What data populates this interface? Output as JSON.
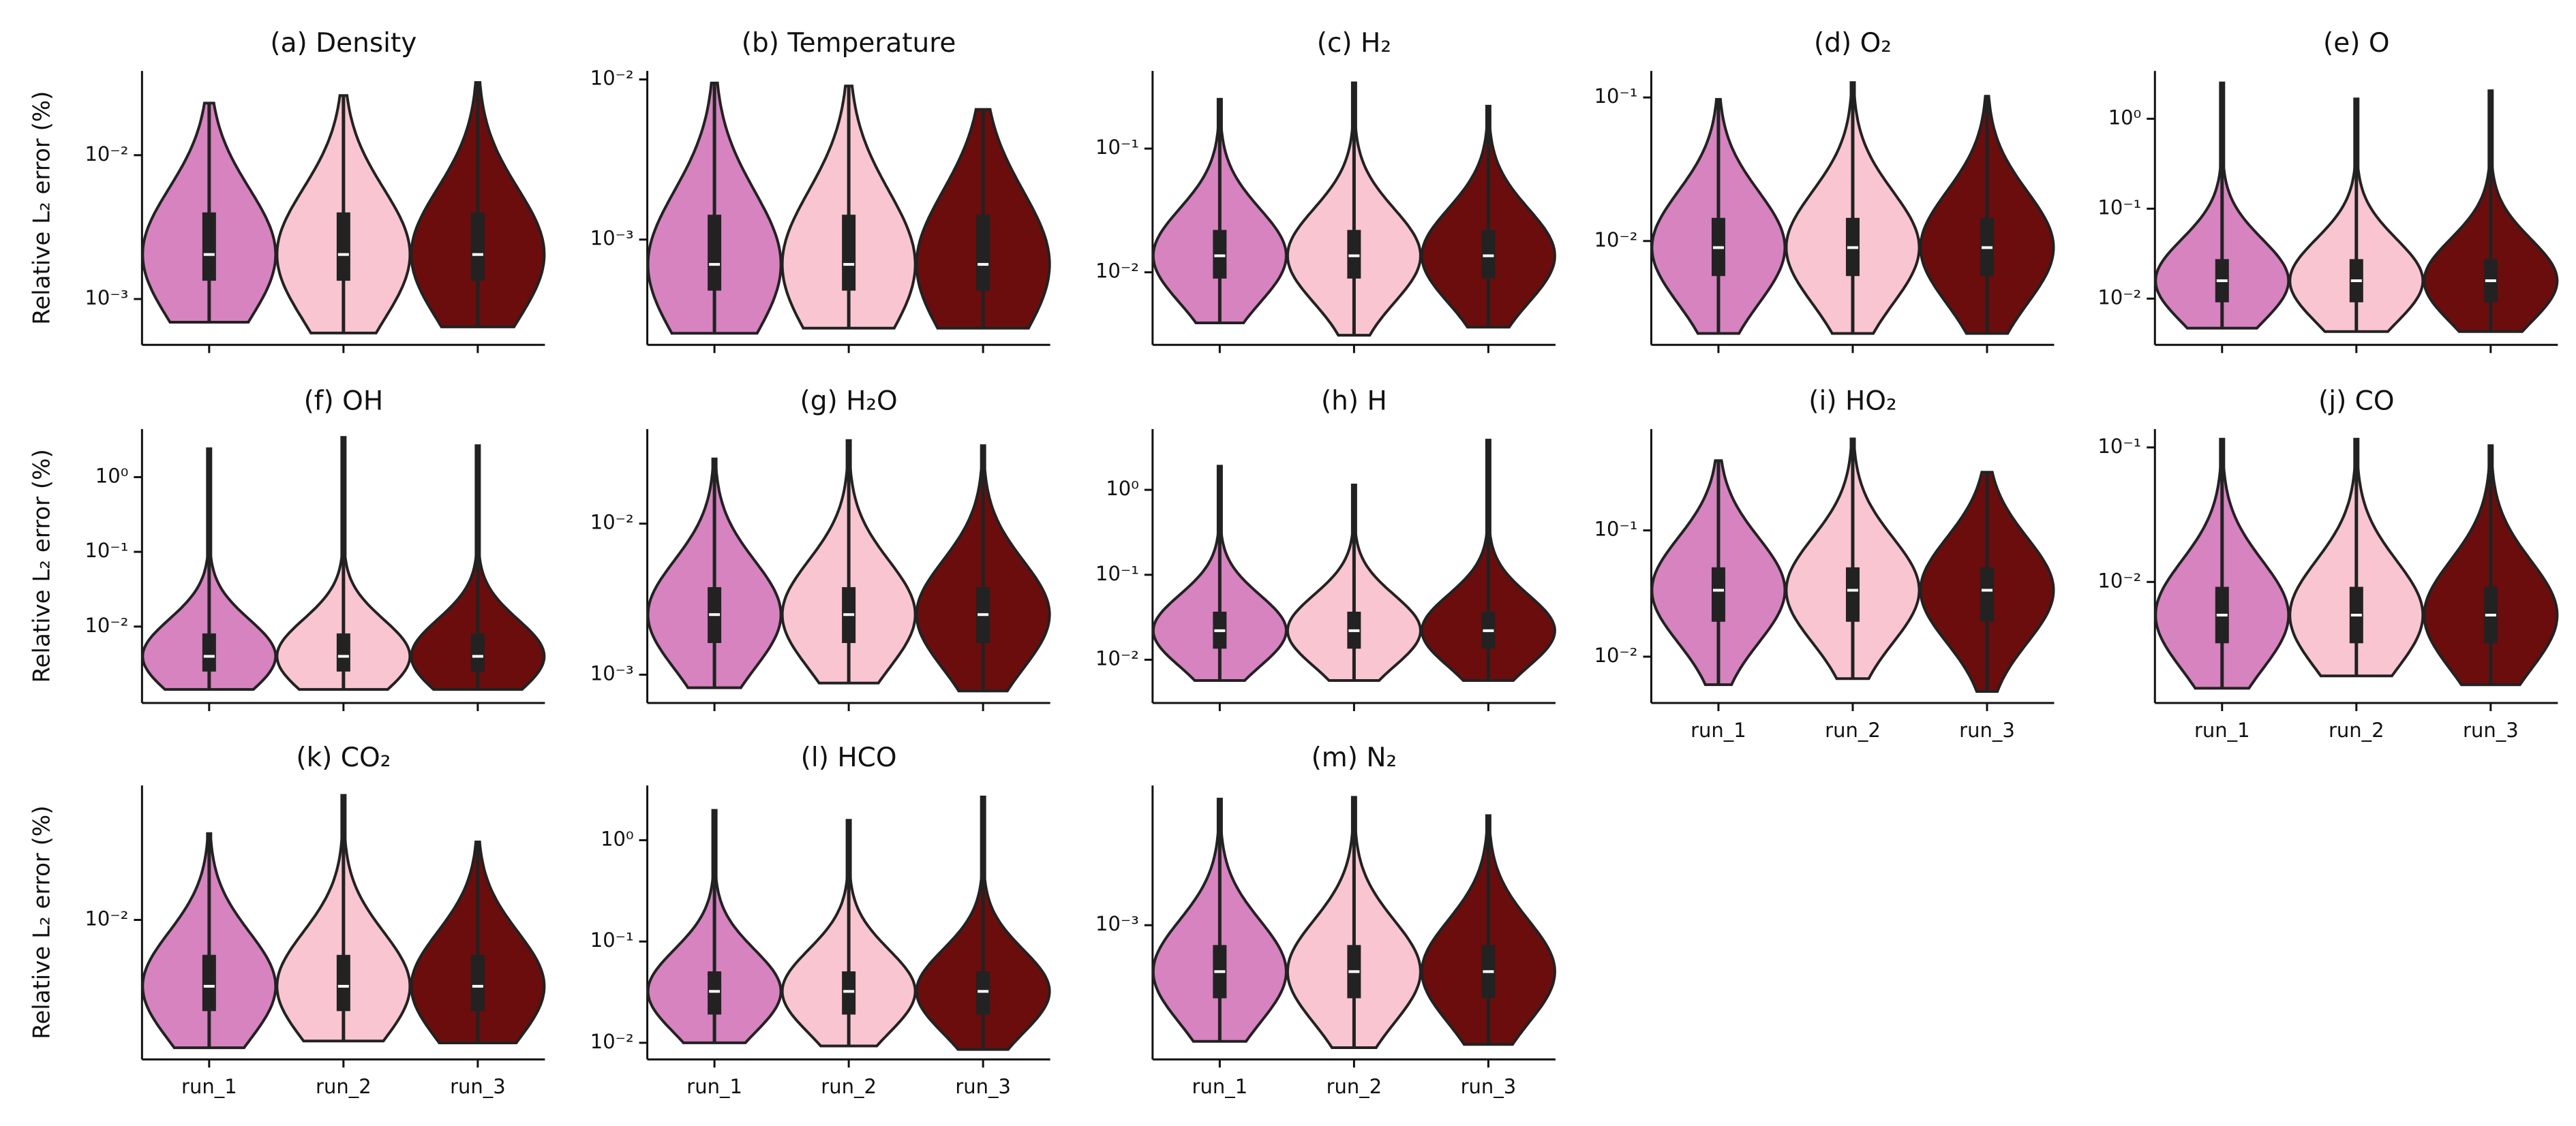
{
  "chart_data": [
    {
      "type": "violin",
      "title": "(a) Density",
      "ylabel": "Relative L₂ error (%)",
      "log": true,
      "ylim": [
        0.00048,
        0.0385
      ],
      "yticks": [
        {
          "value": 0.01,
          "label": "10⁻²"
        },
        {
          "value": 0.001,
          "label": "10⁻³"
        }
      ],
      "colors": [
        "#d683c0",
        "#f9c5d0",
        "#6b0d0d"
      ],
      "violins": [
        {
          "min": 0.00069,
          "q1": 0.00134,
          "median": 0.00204,
          "q3": 0.004,
          "max": 0.023
        },
        {
          "min": 0.00058,
          "q1": 0.00134,
          "median": 0.00204,
          "q3": 0.004,
          "max": 0.026
        },
        {
          "min": 0.00064,
          "q1": 0.00134,
          "median": 0.00204,
          "q3": 0.004,
          "max": 0.032
        }
      ]
    },
    {
      "type": "violin",
      "title": "(b) Temperature",
      "log": true,
      "ylim": [
        0.00022,
        0.0113
      ],
      "yticks": [
        {
          "value": 0.01,
          "label": "10⁻²"
        },
        {
          "value": 0.001,
          "label": "10⁻³"
        }
      ],
      "colors": [
        "#d683c0",
        "#f9c5d0",
        "#6b0d0d"
      ],
      "violins": [
        {
          "min": 0.00026,
          "q1": 0.00048,
          "median": 0.0007,
          "q3": 0.00143,
          "max": 0.0095
        },
        {
          "min": 0.00028,
          "q1": 0.00048,
          "median": 0.0007,
          "q3": 0.00143,
          "max": 0.0091
        },
        {
          "min": 0.00028,
          "q1": 0.00048,
          "median": 0.0007,
          "q3": 0.00143,
          "max": 0.0065
        }
      ]
    },
    {
      "type": "violin",
      "title": "(c) H₂",
      "log": true,
      "ylim": [
        0.00259,
        0.424
      ],
      "yticks": [
        {
          "value": 0.1,
          "label": "10⁻¹"
        },
        {
          "value": 0.01,
          "label": "10⁻²"
        }
      ],
      "colors": [
        "#d683c0",
        "#f9c5d0",
        "#6b0d0d"
      ],
      "violins": [
        {
          "min": 0.0039,
          "q1": 0.0089,
          "median": 0.0136,
          "q3": 0.022,
          "max": 0.25
        },
        {
          "min": 0.0031,
          "q1": 0.0089,
          "median": 0.0136,
          "q3": 0.022,
          "max": 0.34
        },
        {
          "min": 0.0036,
          "q1": 0.0089,
          "median": 0.0136,
          "q3": 0.022,
          "max": 0.22
        }
      ]
    },
    {
      "type": "violin",
      "title": "(d) O₂",
      "log": true,
      "ylim": [
        0.00189,
        0.153
      ],
      "yticks": [
        {
          "value": 0.1,
          "label": "10⁻¹"
        },
        {
          "value": 0.01,
          "label": "10⁻²"
        }
      ],
      "colors": [
        "#d683c0",
        "#f9c5d0",
        "#6b0d0d"
      ],
      "violins": [
        {
          "min": 0.00227,
          "q1": 0.0057,
          "median": 0.009,
          "q3": 0.0145,
          "max": 0.097
        },
        {
          "min": 0.00227,
          "q1": 0.0057,
          "median": 0.009,
          "q3": 0.0145,
          "max": 0.127
        },
        {
          "min": 0.00227,
          "q1": 0.0057,
          "median": 0.009,
          "q3": 0.0145,
          "max": 0.102
        }
      ]
    },
    {
      "type": "violin",
      "title": "(e) O",
      "log": true,
      "ylim": [
        0.00306,
        3.4
      ],
      "yticks": [
        {
          "value": 1,
          "label": "10⁰"
        },
        {
          "value": 0.1,
          "label": "10⁻¹"
        },
        {
          "value": 0.01,
          "label": "10⁻²"
        }
      ],
      "colors": [
        "#d683c0",
        "#f9c5d0",
        "#6b0d0d"
      ],
      "violins": [
        {
          "min": 0.0047,
          "q1": 0.0091,
          "median": 0.0158,
          "q3": 0.0275,
          "max": 2.5
        },
        {
          "min": 0.0043,
          "q1": 0.0091,
          "median": 0.0158,
          "q3": 0.0275,
          "max": 1.66
        },
        {
          "min": 0.0043,
          "q1": 0.0091,
          "median": 0.0158,
          "q3": 0.0275,
          "max": 2.05
        }
      ]
    },
    {
      "type": "violin",
      "title": "(f) OH",
      "ylabel": "Relative L₂ error (%)",
      "log": true,
      "ylim": [
        0.00095,
        4.4
      ],
      "yticks": [
        {
          "value": 1,
          "label": "10⁰"
        },
        {
          "value": 0.1,
          "label": "10⁻¹"
        },
        {
          "value": 0.01,
          "label": "10⁻²"
        }
      ],
      "colors": [
        "#d683c0",
        "#f9c5d0",
        "#6b0d0d"
      ],
      "violins": [
        {
          "min": 0.00144,
          "q1": 0.0025,
          "median": 0.004,
          "q3": 0.0081,
          "max": 2.4
        },
        {
          "min": 0.00144,
          "q1": 0.0025,
          "median": 0.004,
          "q3": 0.0081,
          "max": 3.4
        },
        {
          "min": 0.00144,
          "q1": 0.0025,
          "median": 0.004,
          "q3": 0.0081,
          "max": 2.64
        }
      ]
    },
    {
      "type": "violin",
      "title": "(g) H₂O",
      "log": true,
      "ylim": [
        0.00065,
        0.0423
      ],
      "yticks": [
        {
          "value": 0.01,
          "label": "10⁻²"
        },
        {
          "value": 0.001,
          "label": "10⁻³"
        }
      ],
      "colors": [
        "#d683c0",
        "#f9c5d0",
        "#6b0d0d"
      ],
      "violins": [
        {
          "min": 0.00082,
          "q1": 0.00162,
          "median": 0.0025,
          "q3": 0.0038,
          "max": 0.0268
        },
        {
          "min": 0.00088,
          "q1": 0.00162,
          "median": 0.0025,
          "q3": 0.0038,
          "max": 0.0355
        },
        {
          "min": 0.00078,
          "q1": 0.00162,
          "median": 0.0025,
          "q3": 0.0038,
          "max": 0.0328
        }
      ]
    },
    {
      "type": "violin",
      "title": "(h) H",
      "log": true,
      "ylim": [
        0.0031,
        5.2
      ],
      "yticks": [
        {
          "value": 1,
          "label": "10⁰"
        },
        {
          "value": 0.1,
          "label": "10⁻¹"
        },
        {
          "value": 0.01,
          "label": "10⁻²"
        }
      ],
      "colors": [
        "#d683c0",
        "#f9c5d0",
        "#6b0d0d"
      ],
      "violins": [
        {
          "min": 0.0057,
          "q1": 0.0135,
          "median": 0.022,
          "q3": 0.0368,
          "max": 1.9
        },
        {
          "min": 0.0057,
          "q1": 0.0135,
          "median": 0.022,
          "q3": 0.0368,
          "max": 1.14
        },
        {
          "min": 0.0057,
          "q1": 0.0135,
          "median": 0.022,
          "q3": 0.0368,
          "max": 3.85
        }
      ]
    },
    {
      "type": "violin",
      "title": "(i) HO₂",
      "log": true,
      "categories": [
        "run_1",
        "run_2",
        "run_3"
      ],
      "ylim": [
        0.0043,
        0.635
      ],
      "yticks": [
        {
          "value": 0.1,
          "label": "10⁻¹"
        },
        {
          "value": 0.01,
          "label": "10⁻²"
        }
      ],
      "colors": [
        "#d683c0",
        "#f9c5d0",
        "#6b0d0d"
      ],
      "violins": [
        {
          "min": 0.006,
          "q1": 0.0189,
          "median": 0.0336,
          "q3": 0.051,
          "max": 0.357
        },
        {
          "min": 0.0067,
          "q1": 0.0189,
          "median": 0.0336,
          "q3": 0.051,
          "max": 0.53
        },
        {
          "min": 0.0053,
          "q1": 0.0189,
          "median": 0.0336,
          "q3": 0.051,
          "max": 0.289
        }
      ]
    },
    {
      "type": "violin",
      "title": "(j) CO",
      "log": true,
      "categories": [
        "run_1",
        "run_2",
        "run_3"
      ],
      "ylim": [
        0.00126,
        0.137
      ],
      "yticks": [
        {
          "value": 0.1,
          "label": "10⁻¹"
        },
        {
          "value": 0.01,
          "label": "10⁻²"
        }
      ],
      "colors": [
        "#d683c0",
        "#f9c5d0",
        "#6b0d0d"
      ],
      "violins": [
        {
          "min": 0.00162,
          "q1": 0.0035,
          "median": 0.00567,
          "q3": 0.0092,
          "max": 0.115
        },
        {
          "min": 0.002,
          "q1": 0.0035,
          "median": 0.00567,
          "q3": 0.0092,
          "max": 0.115
        },
        {
          "min": 0.00172,
          "q1": 0.0035,
          "median": 0.00567,
          "q3": 0.0092,
          "max": 0.103
        }
      ]
    },
    {
      "type": "violin",
      "title": "(k) CO₂",
      "ylabel": "Relative L₂ error (%)",
      "log": true,
      "categories": [
        "run_1",
        "run_2",
        "run_3"
      ],
      "ylim": [
        0.00186,
        0.0506
      ],
      "yticks": [
        {
          "value": 0.01,
          "label": "10⁻²"
        }
      ],
      "colors": [
        "#d683c0",
        "#f9c5d0",
        "#6b0d0d"
      ],
      "violins": [
        {
          "min": 0.00214,
          "q1": 0.00333,
          "median": 0.00449,
          "q3": 0.00656,
          "max": 0.0283
        },
        {
          "min": 0.00232,
          "q1": 0.00333,
          "median": 0.00449,
          "q3": 0.00656,
          "max": 0.0449
        },
        {
          "min": 0.00227,
          "q1": 0.00333,
          "median": 0.00449,
          "q3": 0.00656,
          "max": 0.0256
        }
      ]
    },
    {
      "type": "violin",
      "title": "(l) HCO",
      "log": true,
      "categories": [
        "run_1",
        "run_2",
        "run_3"
      ],
      "ylim": [
        0.00686,
        3.47
      ],
      "yticks": [
        {
          "value": 1,
          "label": "10⁰"
        },
        {
          "value": 0.1,
          "label": "10⁻¹"
        },
        {
          "value": 0.01,
          "label": "10⁻²"
        }
      ],
      "colors": [
        "#d683c0",
        "#f9c5d0",
        "#6b0d0d"
      ],
      "violins": [
        {
          "min": 0.01,
          "q1": 0.019,
          "median": 0.0322,
          "q3": 0.0507,
          "max": 1.97
        },
        {
          "min": 0.0093,
          "q1": 0.019,
          "median": 0.0322,
          "q3": 0.0507,
          "max": 1.57
        },
        {
          "min": 0.0086,
          "q1": 0.019,
          "median": 0.0322,
          "q3": 0.0507,
          "max": 2.67
        }
      ]
    },
    {
      "type": "violin",
      "title": "(m) N₂",
      "log": true,
      "categories": [
        "run_1",
        "run_2",
        "run_3"
      ],
      "ylim": [
        0.000198,
        0.0054
      ],
      "yticks": [
        {
          "value": 0.001,
          "label": "10⁻³"
        }
      ],
      "colors": [
        "#d683c0",
        "#f9c5d0",
        "#6b0d0d"
      ],
      "violins": [
        {
          "min": 0.000246,
          "q1": 0.000414,
          "median": 0.000571,
          "q3": 0.000787,
          "max": 0.00458
        },
        {
          "min": 0.000228,
          "q1": 0.000414,
          "median": 0.000571,
          "q3": 0.000787,
          "max": 0.00468
        },
        {
          "min": 0.000237,
          "q1": 0.000414,
          "median": 0.000571,
          "q3": 0.000787,
          "max": 0.00375
        }
      ]
    }
  ]
}
